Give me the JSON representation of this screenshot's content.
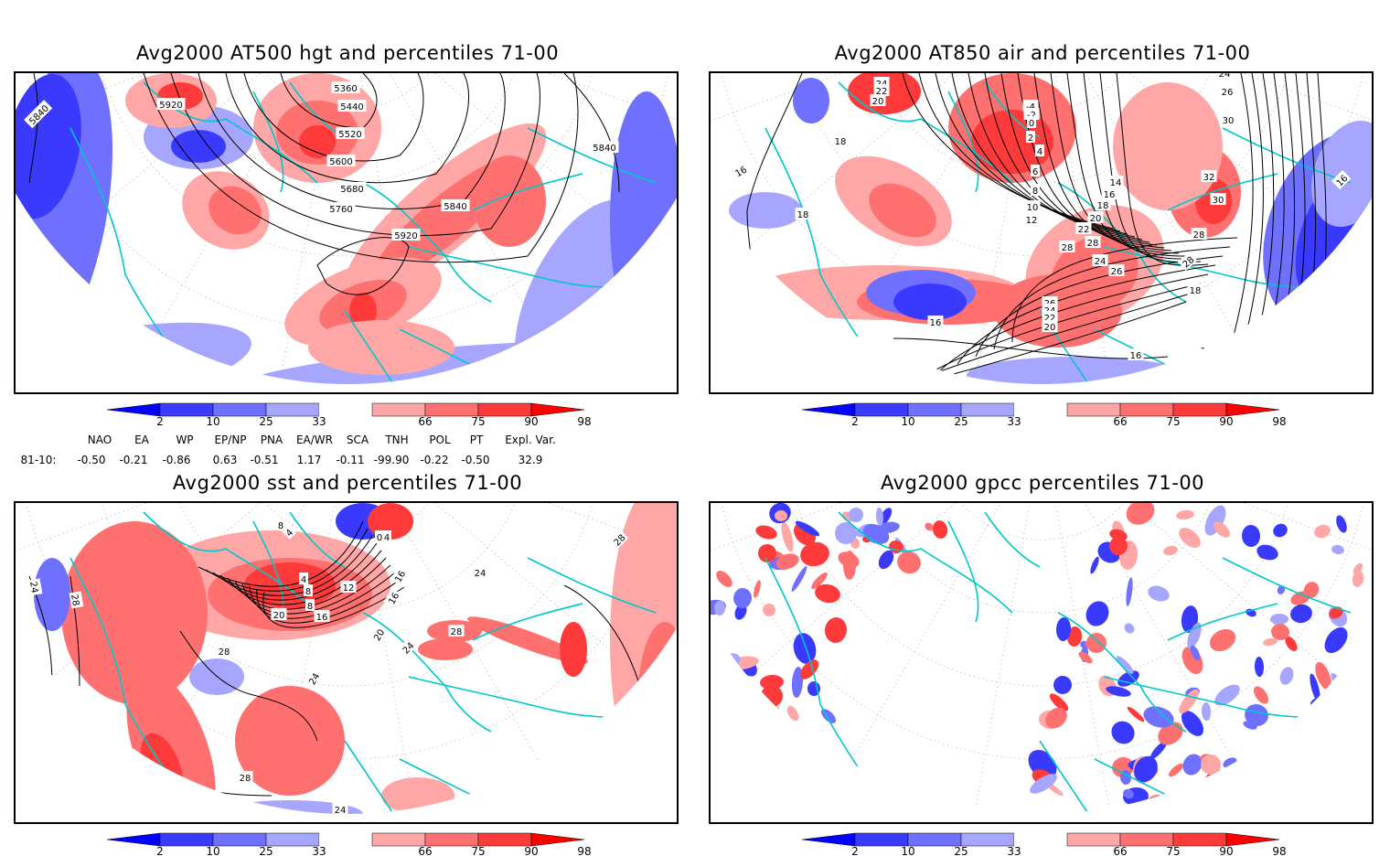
{
  "panels": [
    {
      "id": "at500",
      "title": "Avg2000 AT500 hgt and percentiles 71-00",
      "contour_labels": [
        "5840",
        "5920",
        "5360",
        "5440",
        "5520",
        "5600",
        "5680",
        "5760",
        "5840",
        "5920",
        "5840"
      ]
    },
    {
      "id": "at850",
      "title": "Avg2000 AT850 air and percentiles 71-00",
      "contour_labels": [
        "24",
        "22",
        "20",
        "18",
        "16",
        "18",
        "-4",
        "-2",
        "0",
        "2",
        "4",
        "6",
        "8",
        "10",
        "12",
        "14",
        "16",
        "18",
        "20",
        "22",
        "24",
        "26",
        "28",
        "30",
        "32",
        "28",
        "24",
        "26",
        "30",
        "16",
        "28",
        "28",
        "26",
        "24",
        "22",
        "20",
        "16",
        "18",
        "18",
        "16"
      ]
    },
    {
      "id": "sst",
      "title": "Avg2000 sst and percentiles 71-00",
      "contour_labels": [
        "24",
        "28",
        "8",
        "4",
        "0",
        "4",
        "4",
        "8",
        "12",
        "8",
        "20",
        "16",
        "16",
        "16",
        "20",
        "24",
        "28",
        "24",
        "28",
        "24",
        "28",
        "24",
        "28"
      ]
    },
    {
      "id": "gpcc",
      "title": "Avg2000 gpcc percentiles 71-00",
      "contour_labels": []
    }
  ],
  "colorbar": {
    "ticks": [
      "2",
      "10",
      "25",
      "33",
      "66",
      "75",
      "90",
      "98"
    ],
    "colors": {
      "below2": "#0000ff",
      "b2_10": "#3a3aff",
      "b10_25": "#7070ff",
      "b25_33": "#a6a6ff",
      "b33_66": "#ffffff",
      "b66_75": "#ffa6a6",
      "b75_90": "#ff7070",
      "b90_98": "#ff3a3a",
      "above98": "#ff0000"
    }
  },
  "teleconnections": {
    "headers": [
      "NAO",
      "EA",
      "WP",
      "EP/NP",
      "PNA",
      "EA/WR",
      "SCA",
      "TNH",
      "POL",
      "PT",
      "Expl. Var."
    ],
    "row_label": "81-10:",
    "values": [
      "-0.50",
      "-0.21",
      "-0.86",
      "0.63",
      "-0.51",
      "1.17",
      "-0.11",
      "-99.90",
      "-0.22",
      "-0.50",
      "32.9"
    ]
  },
  "colors": {
    "coastline": "#00c8c8",
    "contour": "#000000",
    "grid": "#a0a0a0"
  }
}
